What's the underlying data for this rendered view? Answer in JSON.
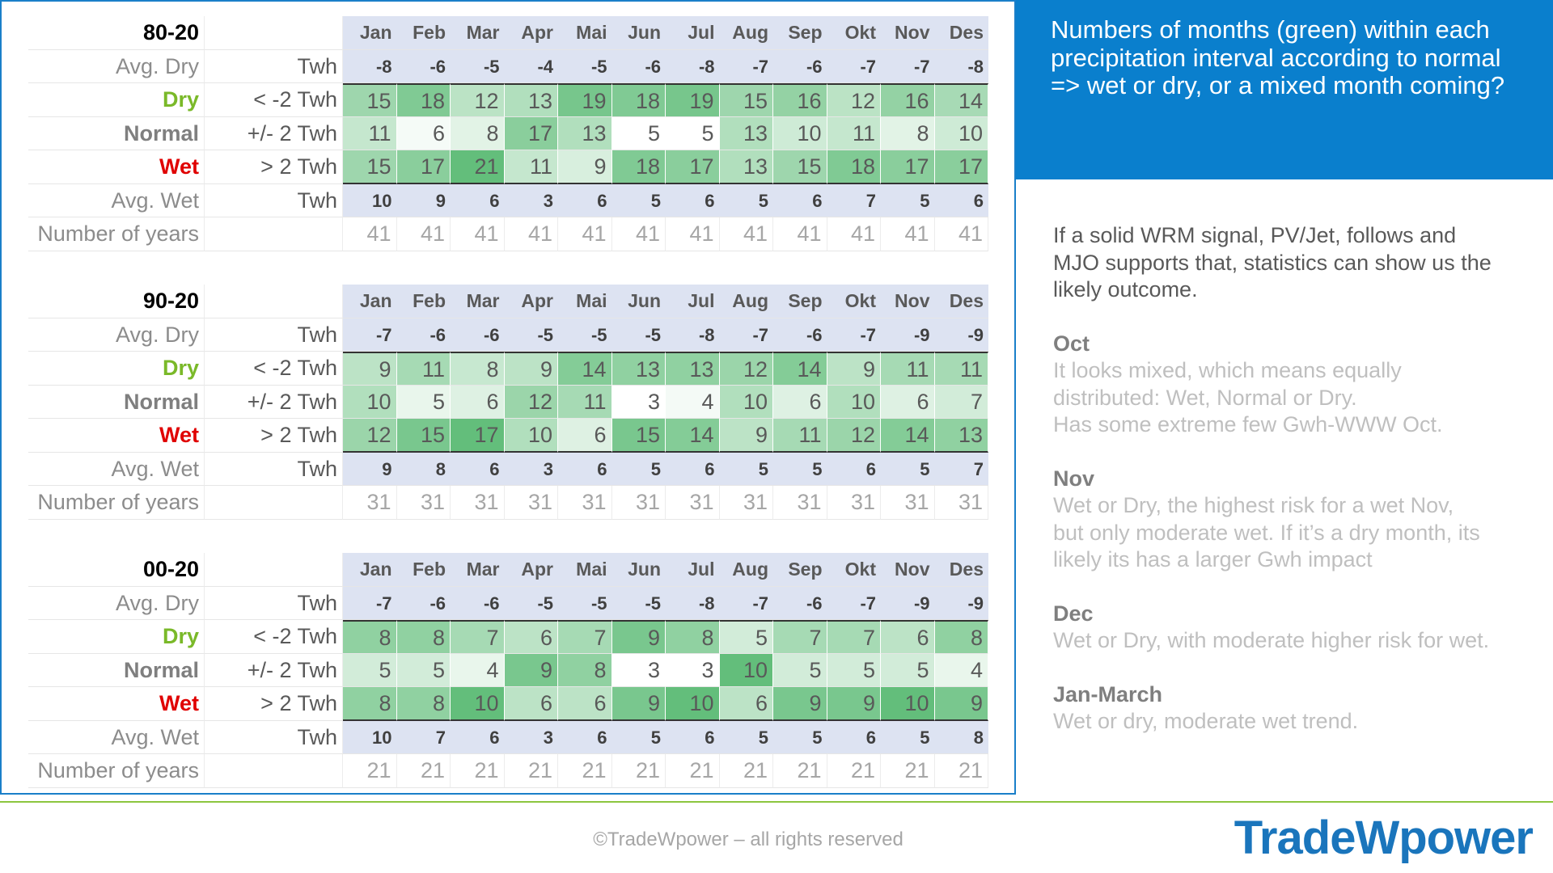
{
  "tables": [
    {
      "title": "80-20",
      "months": [
        "Jan",
        "Feb",
        "Mar",
        "Apr",
        "Mai",
        "Jun",
        "Jul",
        "Aug",
        "Sep",
        "Okt",
        "Nov",
        "Des"
      ],
      "rows": [
        {
          "label": "Avg. Dry",
          "unit": "Twh",
          "values": [
            -8,
            -6,
            -5,
            -4,
            -5,
            -6,
            -8,
            -7,
            -6,
            -7,
            -7,
            -8
          ]
        },
        {
          "label": "Dry",
          "unit": "< -2 Twh",
          "values": [
            15,
            18,
            12,
            13,
            19,
            18,
            19,
            15,
            16,
            12,
            16,
            14
          ]
        },
        {
          "label": "Normal",
          "unit": "+/- 2 Twh",
          "values": [
            11,
            6,
            8,
            17,
            13,
            5,
            5,
            13,
            10,
            11,
            8,
            10
          ]
        },
        {
          "label": "Wet",
          "unit": "> 2 Twh",
          "values": [
            15,
            17,
            21,
            11,
            9,
            18,
            17,
            13,
            15,
            18,
            17,
            17
          ]
        },
        {
          "label": "Avg. Wet",
          "unit": "Twh",
          "values": [
            10,
            9,
            6,
            3,
            6,
            5,
            6,
            5,
            6,
            7,
            5,
            6
          ]
        },
        {
          "label": "Number of years",
          "values": [
            41,
            41,
            41,
            41,
            41,
            41,
            41,
            41,
            41,
            41,
            41,
            41
          ]
        }
      ]
    },
    {
      "title": "90-20",
      "months": [
        "Jan",
        "Feb",
        "Mar",
        "Apr",
        "Mai",
        "Jun",
        "Jul",
        "Aug",
        "Sep",
        "Okt",
        "Nov",
        "Des"
      ],
      "rows": [
        {
          "label": "Avg. Dry",
          "unit": "Twh",
          "values": [
            -7,
            -6,
            -6,
            -5,
            -5,
            -5,
            -8,
            -7,
            -6,
            -7,
            -9,
            -9
          ]
        },
        {
          "label": "Dry",
          "unit": "< -2 Twh",
          "values": [
            9,
            11,
            8,
            9,
            14,
            13,
            13,
            12,
            14,
            9,
            11,
            11
          ]
        },
        {
          "label": "Normal",
          "unit": "+/- 2 Twh",
          "values": [
            10,
            5,
            6,
            12,
            11,
            3,
            4,
            10,
            6,
            10,
            6,
            7
          ]
        },
        {
          "label": "Wet",
          "unit": "> 2 Twh",
          "values": [
            12,
            15,
            17,
            10,
            6,
            15,
            14,
            9,
            11,
            12,
            14,
            13
          ]
        },
        {
          "label": "Avg. Wet",
          "unit": "Twh",
          "values": [
            9,
            8,
            6,
            3,
            6,
            5,
            6,
            5,
            5,
            6,
            5,
            7
          ]
        },
        {
          "label": "Number of years",
          "values": [
            31,
            31,
            31,
            31,
            31,
            31,
            31,
            31,
            31,
            31,
            31,
            31
          ]
        }
      ]
    },
    {
      "title": "00-20",
      "months": [
        "Jan",
        "Feb",
        "Mar",
        "Apr",
        "Mai",
        "Jun",
        "Jul",
        "Aug",
        "Sep",
        "Okt",
        "Nov",
        "Des"
      ],
      "rows": [
        {
          "label": "Avg. Dry",
          "unit": "Twh",
          "values": [
            -7,
            -6,
            -6,
            -5,
            -5,
            -5,
            -8,
            -7,
            -6,
            -7,
            -9,
            -9
          ]
        },
        {
          "label": "Dry",
          "unit": "< -2 Twh",
          "values": [
            8,
            8,
            7,
            6,
            7,
            9,
            8,
            5,
            7,
            7,
            6,
            8
          ]
        },
        {
          "label": "Normal",
          "unit": "+/- 2 Twh",
          "values": [
            5,
            5,
            4,
            9,
            8,
            3,
            3,
            10,
            5,
            5,
            5,
            4
          ]
        },
        {
          "label": "Wet",
          "unit": "> 2 Twh",
          "values": [
            8,
            8,
            10,
            6,
            6,
            9,
            10,
            6,
            9,
            9,
            10,
            9
          ]
        },
        {
          "label": "Avg. Wet",
          "unit": "Twh",
          "values": [
            10,
            7,
            6,
            3,
            6,
            5,
            6,
            5,
            5,
            6,
            5,
            8
          ]
        },
        {
          "label": "Number of years",
          "values": [
            21,
            21,
            21,
            21,
            21,
            21,
            21,
            21,
            21,
            21,
            21,
            21
          ]
        }
      ]
    }
  ],
  "panel": {
    "heading": "Numbers of months  (green) within each precipitation interval according to normal => wet or dry, or a mixed month coming?",
    "intro": [
      "If a solid WRM signal, PV/Jet, follows and",
      "MJO supports that, statistics can show us the",
      "likely outcome."
    ],
    "sections": [
      {
        "title": "Oct",
        "lines": [
          "It looks mixed, which means equally",
          "distributed: Wet, Normal or Dry.",
          "Has some extreme few Gwh-WWW Oct."
        ]
      },
      {
        "title": "Nov",
        "lines": [
          "Wet or Dry, the highest risk for a wet Nov,",
          "but only moderate wet. If it’s a dry month, its",
          "likely its has a larger Gwh impact"
        ]
      },
      {
        "title": "Dec",
        "lines": [
          "Wet or Dry, with moderate higher risk for wet."
        ]
      },
      {
        "title": "Jan-March",
        "lines": [
          "Wet or dry, moderate wet trend."
        ]
      }
    ]
  },
  "footer": {
    "copyright": "©TradeWpower – all rights reserved",
    "logo": "TradeWpower"
  }
}
